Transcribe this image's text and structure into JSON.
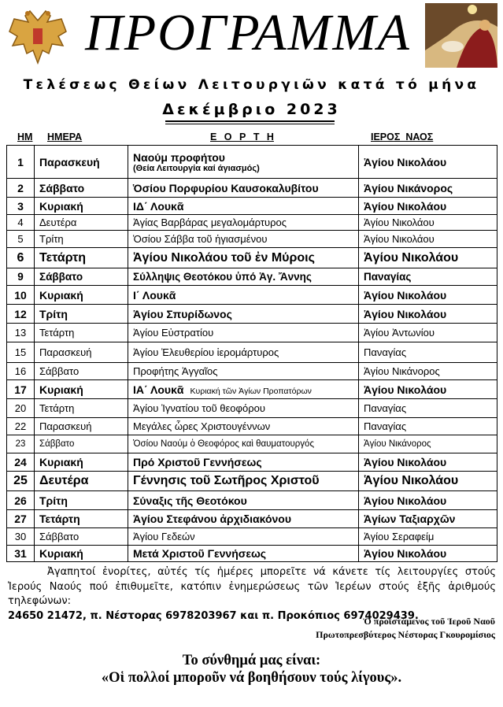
{
  "header": {
    "title": "ΠΡΟΓΡΑΜΜΑ",
    "subtitle": "Τελέσεως Θείων Λειτουργιῶν κατά τό μήνα",
    "month": "Δεκέμβριο 2023"
  },
  "columns": {
    "num": "ΗΜ",
    "day": "ΗΜΕΡΑ",
    "feast": "Ε Ο Ρ Τ Η",
    "church": "ΙΕΡΟΣ  ΝΑΟΣ"
  },
  "rows": [
    {
      "num": "1",
      "day": "Παρασκευή",
      "feast": "Ναούμ προφήτου",
      "feast_sub": "(Θεία Λειτουργία καί άγιασμός)",
      "church": "Ἁγίου Νικολάου",
      "bold": true
    },
    {
      "num": "2",
      "day": "Σάββατο",
      "feast": "Ὁσίου Πορφυρίου Καυσοκαλυβίτου",
      "church": "Ἁγίου Νικάνορος",
      "bold": true
    },
    {
      "num": "3",
      "day": "Κυριακή",
      "feast": "ΙΔ΄ Λουκᾶ",
      "church": "Ἁγίου Νικολάου",
      "bold": true
    },
    {
      "num": "4",
      "day": "Δευτέρα",
      "feast": "Ἁγίας Βαρβάρας μεγαλομάρτυρος",
      "church": "Ἁγίου Νικολάου",
      "bold": false
    },
    {
      "num": "5",
      "day": "Τρίτη",
      "feast": "Ὁσίου Σάββα τοῦ ἡγιασμένου",
      "church": "Ἁγίου Νικολάου",
      "bold": false
    },
    {
      "num": "6",
      "day": "Τετάρτη",
      "feast": "Ἁγίου Νικολάου τοῦ ἐν Μύροις",
      "church": "Ἁγίου Νικολάου",
      "bold": true
    },
    {
      "num": "9",
      "day": "Σάββατο",
      "feast": "Σύλληψις Θεοτόκου ὑπό Ἁγ. Ἄννης",
      "church": "Παναγίας",
      "bold": true
    },
    {
      "num": "10",
      "day": "Κυριακή",
      "feast": "Ι΄ Λουκᾶ",
      "church": "Ἁγίου Νικολάου",
      "bold": true
    },
    {
      "num": "12",
      "day": "Τρίτη",
      "feast": "Ἁγίου Σπυρίδωνος",
      "church": "Ἁγίου Νικολάου",
      "bold": true
    },
    {
      "num": "13",
      "day": "Τετάρτη",
      "feast": "Ἁγίου Εὐστρατίου",
      "church": "Ἁγίου Ἀντωνίου",
      "bold": false
    },
    {
      "num": "15",
      "day": "Παρασκευή",
      "feast": "Ἁγίου Ἐλευθερίου ἱερομάρτυρος",
      "church": "Παναγίας",
      "bold": false
    },
    {
      "num": "16",
      "day": "Σάββατο",
      "feast": "Προφήτης Ἀγγαῖος",
      "church": "Ἁγίου Νικάνορος",
      "bold": false
    },
    {
      "num": "17",
      "day": "Κυριακή",
      "feast": "ΙΑ΄ Λουκᾶ",
      "feast_note": "Κυριακή τῶν Ἁγίων Προπατόρων",
      "church": "Ἁγίου Νικολάου",
      "bold": true
    },
    {
      "num": "20",
      "day": "Τετάρτη",
      "feast": "Ἁγίου Ἰγνατίου τοῦ θεοφόρου",
      "church": "Παναγίας",
      "bold": false
    },
    {
      "num": "22",
      "day": "Παρασκευή",
      "feast": "Μεγάλες ὧρες Χριστουγέννων",
      "church": "Παναγίας",
      "bold": false
    },
    {
      "num": "23",
      "day": "Σάββατο",
      "feast": "Ὁσίου Ναούμ ὁ Θεοφόρος καὶ θαυματουργός",
      "church": "Ἁγίου Νικάνορος",
      "bold": false
    },
    {
      "num": "24",
      "day": "Κυριακή",
      "feast": "Πρό Χριστοῦ Γεννήσεως",
      "church": "Ἁγίου Νικολάου",
      "bold": true
    },
    {
      "num": "25",
      "day": "Δευτέρα",
      "feast": "Γέννησις τοῦ  Σωτῆρος Χριστοῦ",
      "church": "Ἁγίου Νικολάου",
      "bold": true
    },
    {
      "num": "26",
      "day": "Τρίτη",
      "feast": "Σύναξις τῆς Θεοτόκου",
      "church": "Ἁγίου Νικολάου",
      "bold": true
    },
    {
      "num": "27",
      "day": "Τετάρτη",
      "feast": "Ἁγίου Στεφάνου ἀρχιδιακόνου",
      "church": "Ἁγίων Ταξιαρχῶν",
      "bold": true
    },
    {
      "num": "30",
      "day": "Σάββατο",
      "feast": "Ἁγίου Γεδεών",
      "church": "Ἁγίου Σεραφείμ",
      "bold": false
    },
    {
      "num": "31",
      "day": "Κυριακή",
      "feast": "Μετά Χριστοῦ Γεννήσεως",
      "church": "Ἁγίου Νικολάου",
      "bold": true
    }
  ],
  "footer": {
    "para_line1": "Ἀγαπητοί ἐνορίτες, αὐτές τίς ἡμέρες μπορεῖτε νά κάνετε τίς λειτουργίες στούς Ἱερούς Ναούς πού ἐπιθυμεῖτε, κατόπιν ἐνημερώσεως τῶν Ἱερέων στούς ἑξῆς ἀριθμούς τηλεφώνων:",
    "phones": "24650 21472, π. Νέστορας 6978203967 και π. Προκόπιος 6974029439.",
    "sig_line1": "Ὁ προϊστάμενος τοῦ  Ἱεροῦ Ναοῦ",
    "sig_line2": "Πρωτοπρεσβύτερος Νέστορας Γκουρομίσιος",
    "motto_line1": "Το σύνθημά μας είναι:",
    "motto_line2": "«Οἱ πολλοί μποροῦν νά βοηθήσουν τούς λίγους»."
  }
}
